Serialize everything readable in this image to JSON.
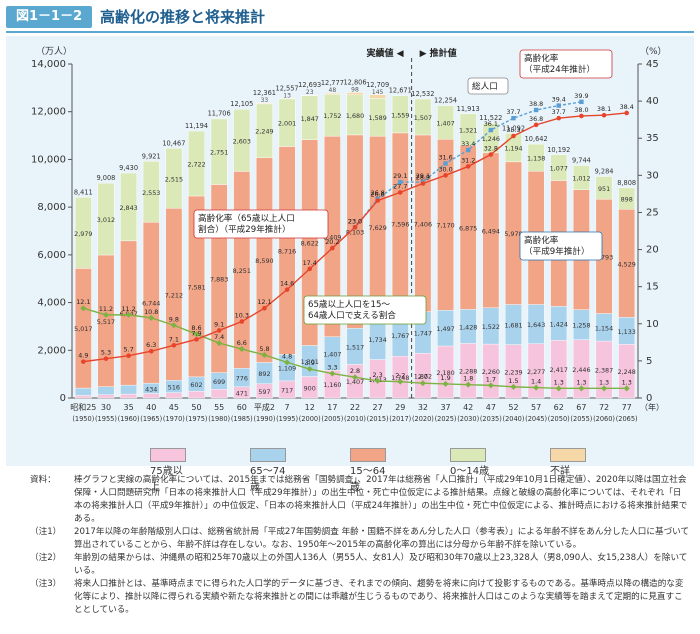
{
  "figure": {
    "number": "図1－1－2",
    "title": "高齢化の推移と将来推計"
  },
  "colors": {
    "age75": "#f6c4dc",
    "age65_74": "#a9d2ec",
    "age15_64": "#f2a487",
    "age0_14": "#dbe9b8",
    "unknown": "#f6d7a8",
    "aging_rate": "#e8442c",
    "support_line": "#7cb342",
    "projection_diamond": "#e0a060",
    "axis": "#555555"
  },
  "chart_data": {
    "type": "bar",
    "y_label_left": "（万人）",
    "y_label_right": "（%）",
    "ylim_left": [
      0,
      14000
    ],
    "ylim_right": [
      0,
      45
    ],
    "yticks_left": [
      "0",
      "2,000",
      "4,000",
      "6,000",
      "8,000",
      "10,000",
      "12,000",
      "14,000"
    ],
    "yticks_right": [
      "0",
      "5",
      "10",
      "15",
      "20",
      "25",
      "30",
      "35",
      "40",
      "45"
    ],
    "x_unit": "（年）",
    "categories": [
      {
        "top": "昭和25",
        "bottom": "(1950)"
      },
      {
        "top": "30",
        "bottom": "(1955)"
      },
      {
        "top": "35",
        "bottom": "(1960)"
      },
      {
        "top": "40",
        "bottom": "(1965)"
      },
      {
        "top": "45",
        "bottom": "(1970)"
      },
      {
        "top": "50",
        "bottom": "(1975)"
      },
      {
        "top": "55",
        "bottom": "(1980)"
      },
      {
        "top": "60",
        "bottom": "(1985)"
      },
      {
        "top": "平成2",
        "bottom": "(1990)"
      },
      {
        "top": "7",
        "bottom": "(1995)"
      },
      {
        "top": "12",
        "bottom": "(2000)"
      },
      {
        "top": "17",
        "bottom": "(2005)"
      },
      {
        "top": "22",
        "bottom": "(2010)"
      },
      {
        "top": "27",
        "bottom": "(2015)"
      },
      {
        "top": "29",
        "bottom": "(2017)"
      },
      {
        "top": "32",
        "bottom": "(2020)"
      },
      {
        "top": "37",
        "bottom": "(2025)"
      },
      {
        "top": "42",
        "bottom": "(2030)"
      },
      {
        "top": "47",
        "bottom": "(2035)"
      },
      {
        "top": "52",
        "bottom": "(2040)"
      },
      {
        "top": "57",
        "bottom": "(2045)"
      },
      {
        "top": "62",
        "bottom": "(2050)"
      },
      {
        "top": "67",
        "bottom": "(2055)"
      },
      {
        "top": "72",
        "bottom": "(2060)"
      },
      {
        "top": "77",
        "bottom": "(2065)"
      }
    ],
    "series": [
      {
        "name": "75歳以上",
        "color": "#f6c4dc",
        "values": [
          107,
          139,
          164,
          189,
          224,
          284,
          366,
          471,
          597,
          717,
          900,
          1160,
          1407,
          1613,
          1748,
          1872,
          2180,
          2288,
          2260,
          2239,
          2277,
          2417,
          2446,
          2387,
          2248
        ],
        "labels": [
          "107",
          "139",
          "164",
          "189",
          "224",
          "284",
          "366",
          "471",
          "597",
          "717",
          "900",
          "1,160",
          "1,407",
          "1,613",
          "1,748",
          "1,872",
          "2,180",
          "2,288",
          "2,260",
          "2,239",
          "2,277",
          "2,417",
          "2,446",
          "2,387",
          "2,248"
        ]
      },
      {
        "name": "65～74歳",
        "color": "#a9d2ec",
        "values": [
          309,
          338,
          376,
          434,
          516,
          602,
          699,
          776,
          892,
          1109,
          1301,
          1407,
          1517,
          1734,
          1767,
          1747,
          1497,
          1428,
          1522,
          1681,
          1643,
          1424,
          1258,
          1154,
          1133
        ],
        "labels": [
          "309",
          "338",
          "376",
          "434",
          "516",
          "602",
          "699",
          "776",
          "892",
          "1,109",
          "1,301",
          "1,407",
          "1,517",
          "1,734",
          "1,767",
          "1,747",
          "1,497",
          "1,428",
          "1,522",
          "1,681",
          "1,643",
          "1,424",
          "1,258",
          "1,154",
          "1,133"
        ]
      },
      {
        "name": "15～64歳",
        "color": "#f2a487",
        "values": [
          5017,
          5517,
          6047,
          6744,
          7212,
          7581,
          7883,
          8251,
          8590,
          8716,
          8622,
          8409,
          8103,
          7629,
          7596,
          7406,
          7170,
          6875,
          6494,
          5978,
          5584,
          5275,
          5028,
          4793,
          4529
        ],
        "labels": [
          "5,017",
          "5,517",
          "6,047",
          "6,744",
          "7,212",
          "7,581",
          "7,883",
          "8,251",
          "8,590",
          "8,716",
          "8,622",
          "8,409",
          "8,103",
          "7,629",
          "7,596",
          "7,406",
          "7,170",
          "6,875",
          "6,494",
          "5,978",
          "5,584",
          "5,275",
          "5,028",
          "4,793",
          "4,529"
        ]
      },
      {
        "name": "0～14歳",
        "color": "#dbe9b8",
        "values": [
          2979,
          3012,
          2843,
          2553,
          2515,
          2722,
          2751,
          2603,
          2249,
          2001,
          1847,
          1752,
          1680,
          1589,
          1559,
          1507,
          1407,
          1321,
          1246,
          1194,
          1138,
          1077,
          1012,
          951,
          898
        ],
        "labels": [
          "2,979",
          "3,012",
          "2,843",
          "2,553",
          "2,515",
          "2,722",
          "2,751",
          "2,603",
          "2,249",
          "2,001",
          "1,847",
          "1,752",
          "1,680",
          "1,589",
          "1,559",
          "1,507",
          "1,407",
          "1,321",
          "1,246",
          "1,194",
          "1,138",
          "1,077",
          "1,012",
          "951",
          "898"
        ]
      },
      {
        "name": "不詳",
        "color": "#f6d7a8",
        "values": [
          0,
          0,
          0,
          0,
          0,
          0,
          0,
          0,
          33,
          13,
          23,
          48,
          98,
          145,
          0,
          0,
          0,
          0,
          0,
          0,
          0,
          0,
          0,
          0,
          0
        ],
        "labels": [
          "",
          "",
          "",
          "",
          "",
          "",
          "",
          "",
          "33",
          "13",
          "23",
          "48",
          "98",
          "145",
          "",
          "",
          "",
          "",
          "",
          "",
          "",
          "",
          "",
          "",
          ""
        ]
      }
    ],
    "totals": [
      "8,411",
      "9,008",
      "9,430",
      "9,921",
      "10,467",
      "11,194",
      "11,706",
      "12,105",
      "12,361",
      "12,557",
      "12,693",
      "12,777",
      "12,806",
      "12,709",
      "12,671",
      "12,532",
      "12,254",
      "11,913",
      "11,522",
      "11,092",
      "10,642",
      "10,192",
      "9,744",
      "9,284",
      "8,808"
    ],
    "total_values": [
      8411,
      9008,
      9430,
      9921,
      10467,
      11194,
      11706,
      12105,
      12361,
      12557,
      12693,
      12777,
      12806,
      12709,
      12671,
      12532,
      12254,
      11913,
      11522,
      11092,
      10642,
      10192,
      9744,
      9284,
      8808
    ],
    "pct_labels_15_64": [
      {
        "index": 13,
        "text": "(60.0%)"
      },
      {
        "index": 13,
        "text": "(12.3%)"
      },
      {
        "index": 14,
        "text": "(13.9%)"
      },
      {
        "index": 14,
        "text": "(13.8%)"
      }
    ],
    "line_series": [
      {
        "name": "高齢化率（65歳以上人口割合）（平成29年推計）",
        "color": "#e8442c",
        "values": [
          4.9,
          5.3,
          5.7,
          6.3,
          7.1,
          7.9,
          9.1,
          10.3,
          12.1,
          14.6,
          17.4,
          20.2,
          23.0,
          26.6,
          27.7,
          28.9,
          30.0,
          31.2,
          32.8,
          35.3,
          36.8,
          37.7,
          38.0,
          38.1,
          38.4
        ],
        "labels": [
          "4.9",
          "5.3",
          "5.7",
          "6.3",
          "7.1",
          "7.9",
          "9.1",
          "10.3",
          "12.1",
          "14.6",
          "17.4",
          "20.2",
          "23.0",
          "26.6",
          "27.7",
          "28.9",
          "30.0",
          "31.2",
          "32.8",
          "35.3",
          "36.8",
          "37.7",
          "38.0",
          "38.1",
          "38.4"
        ]
      },
      {
        "name": "高齢化率（平成24年推計）",
        "color": "#5a9fd4",
        "x_start": 12,
        "values": [
          23.0,
          26.8,
          29.1,
          29.1,
          31.6,
          33.4,
          36.1,
          37.7,
          38.8,
          39.4,
          39.9
        ],
        "labels": [
          "23.0",
          "26.8",
          "29.1",
          "29.1",
          "31.6",
          "33.4",
          "36.1",
          "37.7",
          "38.8",
          "39.4",
          "39.9"
        ]
      },
      {
        "name": "65歳以上人口を15～64歳人口で支える割合",
        "color": "#7cb342",
        "values": [
          12.1,
          11.2,
          11.2,
          10.8,
          9.8,
          8.6,
          7.4,
          6.6,
          5.8,
          4.8,
          3.9,
          3.3,
          2.8,
          2.3,
          2.2,
          2.0,
          1.9,
          1.8,
          1.7,
          1.5,
          1.4,
          1.3,
          1.3,
          1.3,
          1.3
        ],
        "labels": [
          "12.1",
          "11.2",
          "11.2",
          "10.8",
          "9.8",
          "8.6",
          "7.4",
          "6.6",
          "5.8",
          "4.8",
          "3.9",
          "3.3",
          "2.8",
          "2.3",
          "2.2",
          "2.0",
          "1.9",
          "1.8",
          "1.7",
          "1.5",
          "1.4",
          "1.3",
          "1.3",
          "1.3",
          "1.3"
        ]
      }
    ],
    "annotations": {
      "actual": "実績値",
      "projection": "推計値",
      "total_population": "総人口",
      "rate_2012": "高齢化率\n（平成24年推計）",
      "rate_2017": "高齢化率（65歳以上人口\n割合）（平成29年推計）",
      "rate_1997": "高齢化率\n（平成9年推計）",
      "support": "65歳以上人口を15～\n64歳人口で支える割合"
    },
    "legend": [
      "75歳以上",
      "65～74歳",
      "15～64歳",
      "0～14歳",
      "不詳"
    ],
    "legend_placement": "bottom",
    "grid": false
  },
  "notes": [
    {
      "key": "資料：",
      "text": "棒グラフと実線の高齢化率については、2015年までは総務省「国勢調査」、2017年は総務省「人口推計」（平成29年10月1日確定値）、2020年以降は国立社会保障・人口問題研究所「日本の将来推計人口（平成29年推計）」の出生中位・死亡中位仮定による推計結果。点線と破線の高齢化率については、それぞれ「日本の将来推計人口（平成9年推計）」の中位仮定、「日本の将来推計人口（平成24年推計）」の出生中位・死亡中位仮定による、推計時点における将来推計結果である。"
    },
    {
      "key": "（注1）",
      "text": "2017年以降の年齢階級別人口は、総務省統計局「平成27年国勢調査 年齢・国籍不詳をあん分した人口（参考表）」による年齢不詳をあん分した人口に基づいて算出されていることから、年齢不詳は存在しない。なお、1950年～2015年の高齢化率の算出には分母から年齢不詳を除いている。"
    },
    {
      "key": "（注2）",
      "text": "年齢別の結果からは、沖縄県の昭和25年70歳以上の外国人136人（男55人、女81人）及び昭和30年70歳以上23,328人（男8,090人、女15,238人）を除いている。"
    },
    {
      "key": "（注3）",
      "text": "将来人口推計とは、基準時点までに得られた人口学的データに基づき、それまでの傾向、趨勢を将来に向けて投影するものである。基準時点以降の構造的な変化等により、推計以降に得られる実績や新たな将来推計との間には乖離が生じうるものであり、将来推計人口はこのような実績等を踏まえて定期的に見直すこととしている。"
    }
  ]
}
